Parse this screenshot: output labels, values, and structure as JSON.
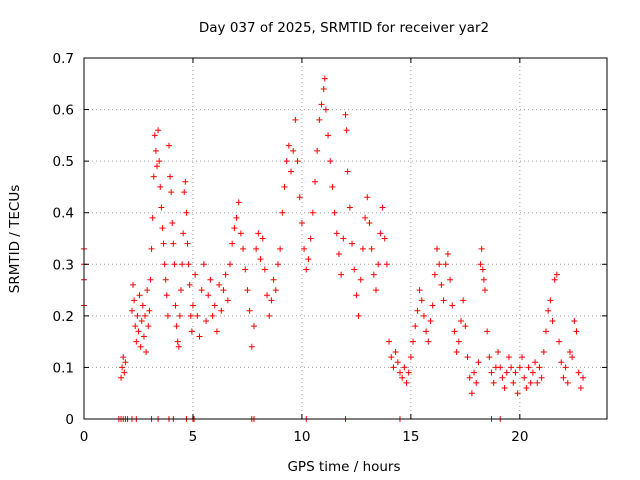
{
  "chart_data": {
    "type": "scatter",
    "title": "Day 037 of 2025, SRMTID for receiver yar2",
    "xlabel": "GPS time / hours",
    "ylabel": "SRMTID / TECUs",
    "xlim": [
      0,
      24
    ],
    "ylim": [
      0,
      0.7
    ],
    "xticks": [
      0,
      5,
      10,
      15,
      20
    ],
    "yticks": [
      0,
      0.1,
      0.2,
      0.3,
      0.4,
      0.5,
      0.6,
      0.7
    ],
    "xtick_labels": [
      "0",
      "5",
      "10",
      "15",
      "20"
    ],
    "ytick_labels": [
      "0",
      "0.1",
      "0.2",
      "0.3",
      "0.4",
      "0.5",
      "0.6",
      "0.7"
    ],
    "grid": true,
    "marker": "+",
    "marker_color": "#ff0000",
    "series": [
      {
        "name": "SRMTID",
        "points": [
          [
            0.0,
            0.33
          ],
          [
            0.0,
            0.3
          ],
          [
            0.0,
            0.27
          ],
          [
            0.0,
            0.22
          ],
          [
            1.6,
            0.0
          ],
          [
            1.7,
            0.0
          ],
          [
            1.8,
            0.0
          ],
          [
            1.9,
            0.0
          ],
          [
            2.0,
            0.0
          ],
          [
            2.2,
            0.0
          ],
          [
            2.4,
            0.0
          ],
          [
            3.1,
            0.0
          ],
          [
            3.4,
            0.0
          ],
          [
            3.9,
            0.0
          ],
          [
            4.1,
            0.0
          ],
          [
            4.7,
            0.0
          ],
          [
            5.0,
            0.0
          ],
          [
            5.05,
            0.0
          ],
          [
            7.7,
            0.0
          ],
          [
            7.8,
            0.0
          ],
          [
            10.2,
            0.0
          ],
          [
            12.0,
            0.0
          ],
          [
            14.5,
            0.0
          ],
          [
            18.7,
            0.0
          ],
          [
            19.1,
            0.0
          ],
          [
            1.7,
            0.08
          ],
          [
            1.75,
            0.1
          ],
          [
            1.8,
            0.12
          ],
          [
            1.85,
            0.09
          ],
          [
            1.9,
            0.11
          ],
          [
            2.2,
            0.21
          ],
          [
            2.25,
            0.26
          ],
          [
            2.3,
            0.23
          ],
          [
            2.35,
            0.18
          ],
          [
            2.4,
            0.15
          ],
          [
            2.45,
            0.2
          ],
          [
            2.5,
            0.17
          ],
          [
            2.55,
            0.24
          ],
          [
            2.6,
            0.14
          ],
          [
            2.65,
            0.19
          ],
          [
            2.7,
            0.22
          ],
          [
            2.75,
            0.16
          ],
          [
            2.8,
            0.2
          ],
          [
            2.85,
            0.13
          ],
          [
            2.9,
            0.25
          ],
          [
            2.95,
            0.18
          ],
          [
            3.0,
            0.21
          ],
          [
            3.05,
            0.27
          ],
          [
            3.1,
            0.33
          ],
          [
            3.15,
            0.39
          ],
          [
            3.2,
            0.47
          ],
          [
            3.25,
            0.55
          ],
          [
            3.3,
            0.52
          ],
          [
            3.35,
            0.49
          ],
          [
            3.4,
            0.56
          ],
          [
            3.45,
            0.5
          ],
          [
            3.5,
            0.45
          ],
          [
            3.55,
            0.41
          ],
          [
            3.6,
            0.37
          ],
          [
            3.65,
            0.34
          ],
          [
            3.7,
            0.3
          ],
          [
            3.75,
            0.27
          ],
          [
            3.8,
            0.24
          ],
          [
            3.85,
            0.2
          ],
          [
            3.9,
            0.53
          ],
          [
            3.95,
            0.47
          ],
          [
            4.0,
            0.44
          ],
          [
            4.05,
            0.38
          ],
          [
            4.1,
            0.34
          ],
          [
            4.15,
            0.3
          ],
          [
            4.2,
            0.22
          ],
          [
            4.25,
            0.18
          ],
          [
            4.3,
            0.15
          ],
          [
            4.35,
            0.14
          ],
          [
            4.4,
            0.2
          ],
          [
            4.45,
            0.25
          ],
          [
            4.5,
            0.3
          ],
          [
            4.55,
            0.36
          ],
          [
            4.6,
            0.44
          ],
          [
            4.65,
            0.46
          ],
          [
            4.7,
            0.4
          ],
          [
            4.75,
            0.34
          ],
          [
            4.8,
            0.3
          ],
          [
            4.85,
            0.26
          ],
          [
            4.9,
            0.2
          ],
          [
            4.95,
            0.17
          ],
          [
            5.0,
            0.22
          ],
          [
            5.1,
            0.28
          ],
          [
            5.2,
            0.2
          ],
          [
            5.3,
            0.16
          ],
          [
            5.4,
            0.25
          ],
          [
            5.5,
            0.3
          ],
          [
            5.6,
            0.19
          ],
          [
            5.7,
            0.24
          ],
          [
            5.8,
            0.27
          ],
          [
            5.9,
            0.2
          ],
          [
            6.0,
            0.22
          ],
          [
            6.1,
            0.17
          ],
          [
            6.2,
            0.26
          ],
          [
            6.3,
            0.21
          ],
          [
            6.4,
            0.25
          ],
          [
            6.5,
            0.28
          ],
          [
            6.6,
            0.23
          ],
          [
            6.7,
            0.3
          ],
          [
            6.8,
            0.34
          ],
          [
            6.9,
            0.37
          ],
          [
            7.0,
            0.39
          ],
          [
            7.1,
            0.42
          ],
          [
            7.2,
            0.36
          ],
          [
            7.3,
            0.33
          ],
          [
            7.4,
            0.29
          ],
          [
            7.5,
            0.25
          ],
          [
            7.6,
            0.21
          ],
          [
            7.7,
            0.14
          ],
          [
            7.8,
            0.18
          ],
          [
            7.9,
            0.33
          ],
          [
            8.0,
            0.36
          ],
          [
            8.1,
            0.31
          ],
          [
            8.2,
            0.35
          ],
          [
            8.3,
            0.29
          ],
          [
            8.4,
            0.24
          ],
          [
            8.5,
            0.2
          ],
          [
            8.6,
            0.23
          ],
          [
            8.7,
            0.27
          ],
          [
            8.8,
            0.25
          ],
          [
            8.9,
            0.3
          ],
          [
            9.0,
            0.33
          ],
          [
            9.1,
            0.4
          ],
          [
            9.2,
            0.45
          ],
          [
            9.3,
            0.5
          ],
          [
            9.4,
            0.53
          ],
          [
            9.5,
            0.48
          ],
          [
            9.6,
            0.52
          ],
          [
            9.7,
            0.58
          ],
          [
            9.8,
            0.5
          ],
          [
            9.9,
            0.43
          ],
          [
            10.0,
            0.38
          ],
          [
            10.1,
            0.33
          ],
          [
            10.2,
            0.29
          ],
          [
            10.3,
            0.31
          ],
          [
            10.4,
            0.35
          ],
          [
            10.5,
            0.4
          ],
          [
            10.6,
            0.46
          ],
          [
            10.7,
            0.52
          ],
          [
            10.8,
            0.58
          ],
          [
            10.9,
            0.61
          ],
          [
            11.0,
            0.64
          ],
          [
            11.05,
            0.66
          ],
          [
            11.1,
            0.6
          ],
          [
            11.2,
            0.55
          ],
          [
            11.3,
            0.5
          ],
          [
            11.4,
            0.45
          ],
          [
            11.5,
            0.4
          ],
          [
            11.6,
            0.36
          ],
          [
            11.7,
            0.32
          ],
          [
            11.8,
            0.28
          ],
          [
            11.9,
            0.35
          ],
          [
            12.0,
            0.59
          ],
          [
            12.05,
            0.56
          ],
          [
            12.1,
            0.48
          ],
          [
            12.2,
            0.41
          ],
          [
            12.3,
            0.34
          ],
          [
            12.4,
            0.29
          ],
          [
            12.5,
            0.24
          ],
          [
            12.6,
            0.2
          ],
          [
            12.7,
            0.27
          ],
          [
            12.8,
            0.33
          ],
          [
            12.9,
            0.39
          ],
          [
            13.0,
            0.43
          ],
          [
            13.1,
            0.38
          ],
          [
            13.2,
            0.33
          ],
          [
            13.3,
            0.28
          ],
          [
            13.4,
            0.25
          ],
          [
            13.5,
            0.3
          ],
          [
            13.6,
            0.36
          ],
          [
            13.7,
            0.41
          ],
          [
            13.8,
            0.35
          ],
          [
            13.9,
            0.3
          ],
          [
            14.0,
            0.15
          ],
          [
            14.1,
            0.12
          ],
          [
            14.2,
            0.1
          ],
          [
            14.3,
            0.13
          ],
          [
            14.4,
            0.11
          ],
          [
            14.5,
            0.09
          ],
          [
            14.6,
            0.08
          ],
          [
            14.7,
            0.1
          ],
          [
            14.8,
            0.07
          ],
          [
            14.9,
            0.09
          ],
          [
            15.0,
            0.12
          ],
          [
            15.1,
            0.15
          ],
          [
            15.2,
            0.18
          ],
          [
            15.3,
            0.21
          ],
          [
            15.4,
            0.25
          ],
          [
            15.5,
            0.23
          ],
          [
            15.6,
            0.2
          ],
          [
            15.7,
            0.17
          ],
          [
            15.8,
            0.15
          ],
          [
            15.9,
            0.19
          ],
          [
            16.0,
            0.22
          ],
          [
            16.1,
            0.28
          ],
          [
            16.2,
            0.33
          ],
          [
            16.3,
            0.3
          ],
          [
            16.4,
            0.26
          ],
          [
            16.5,
            0.23
          ],
          [
            16.6,
            0.3
          ],
          [
            16.7,
            0.32
          ],
          [
            16.8,
            0.27
          ],
          [
            16.9,
            0.22
          ],
          [
            17.0,
            0.17
          ],
          [
            17.1,
            0.13
          ],
          [
            17.2,
            0.15
          ],
          [
            17.3,
            0.19
          ],
          [
            17.4,
            0.23
          ],
          [
            17.5,
            0.18
          ],
          [
            17.6,
            0.12
          ],
          [
            17.7,
            0.08
          ],
          [
            17.8,
            0.05
          ],
          [
            17.9,
            0.09
          ],
          [
            18.0,
            0.07
          ],
          [
            18.1,
            0.11
          ],
          [
            18.2,
            0.3
          ],
          [
            18.25,
            0.33
          ],
          [
            18.3,
            0.29
          ],
          [
            18.35,
            0.27
          ],
          [
            18.4,
            0.25
          ],
          [
            18.5,
            0.17
          ],
          [
            18.6,
            0.12
          ],
          [
            18.7,
            0.09
          ],
          [
            18.8,
            0.07
          ],
          [
            18.9,
            0.1
          ],
          [
            19.0,
            0.13
          ],
          [
            19.1,
            0.1
          ],
          [
            19.2,
            0.08
          ],
          [
            19.3,
            0.06
          ],
          [
            19.4,
            0.09
          ],
          [
            19.5,
            0.12
          ],
          [
            19.6,
            0.1
          ],
          [
            19.7,
            0.07
          ],
          [
            19.8,
            0.09
          ],
          [
            19.9,
            0.05
          ],
          [
            20.0,
            0.1
          ],
          [
            20.1,
            0.12
          ],
          [
            20.2,
            0.08
          ],
          [
            20.3,
            0.06
          ],
          [
            20.4,
            0.1
          ],
          [
            20.5,
            0.07
          ],
          [
            20.6,
            0.09
          ],
          [
            20.7,
            0.11
          ],
          [
            20.8,
            0.07
          ],
          [
            20.9,
            0.1
          ],
          [
            21.0,
            0.08
          ],
          [
            21.1,
            0.13
          ],
          [
            21.2,
            0.17
          ],
          [
            21.3,
            0.21
          ],
          [
            21.4,
            0.23
          ],
          [
            21.5,
            0.19
          ],
          [
            21.6,
            0.27
          ],
          [
            21.7,
            0.28
          ],
          [
            21.8,
            0.15
          ],
          [
            21.9,
            0.11
          ],
          [
            22.0,
            0.08
          ],
          [
            22.1,
            0.1
          ],
          [
            22.2,
            0.07
          ],
          [
            22.3,
            0.13
          ],
          [
            22.4,
            0.12
          ],
          [
            22.5,
            0.19
          ],
          [
            22.6,
            0.17
          ],
          [
            22.7,
            0.09
          ],
          [
            22.8,
            0.06
          ],
          [
            22.9,
            0.08
          ]
        ]
      }
    ]
  }
}
